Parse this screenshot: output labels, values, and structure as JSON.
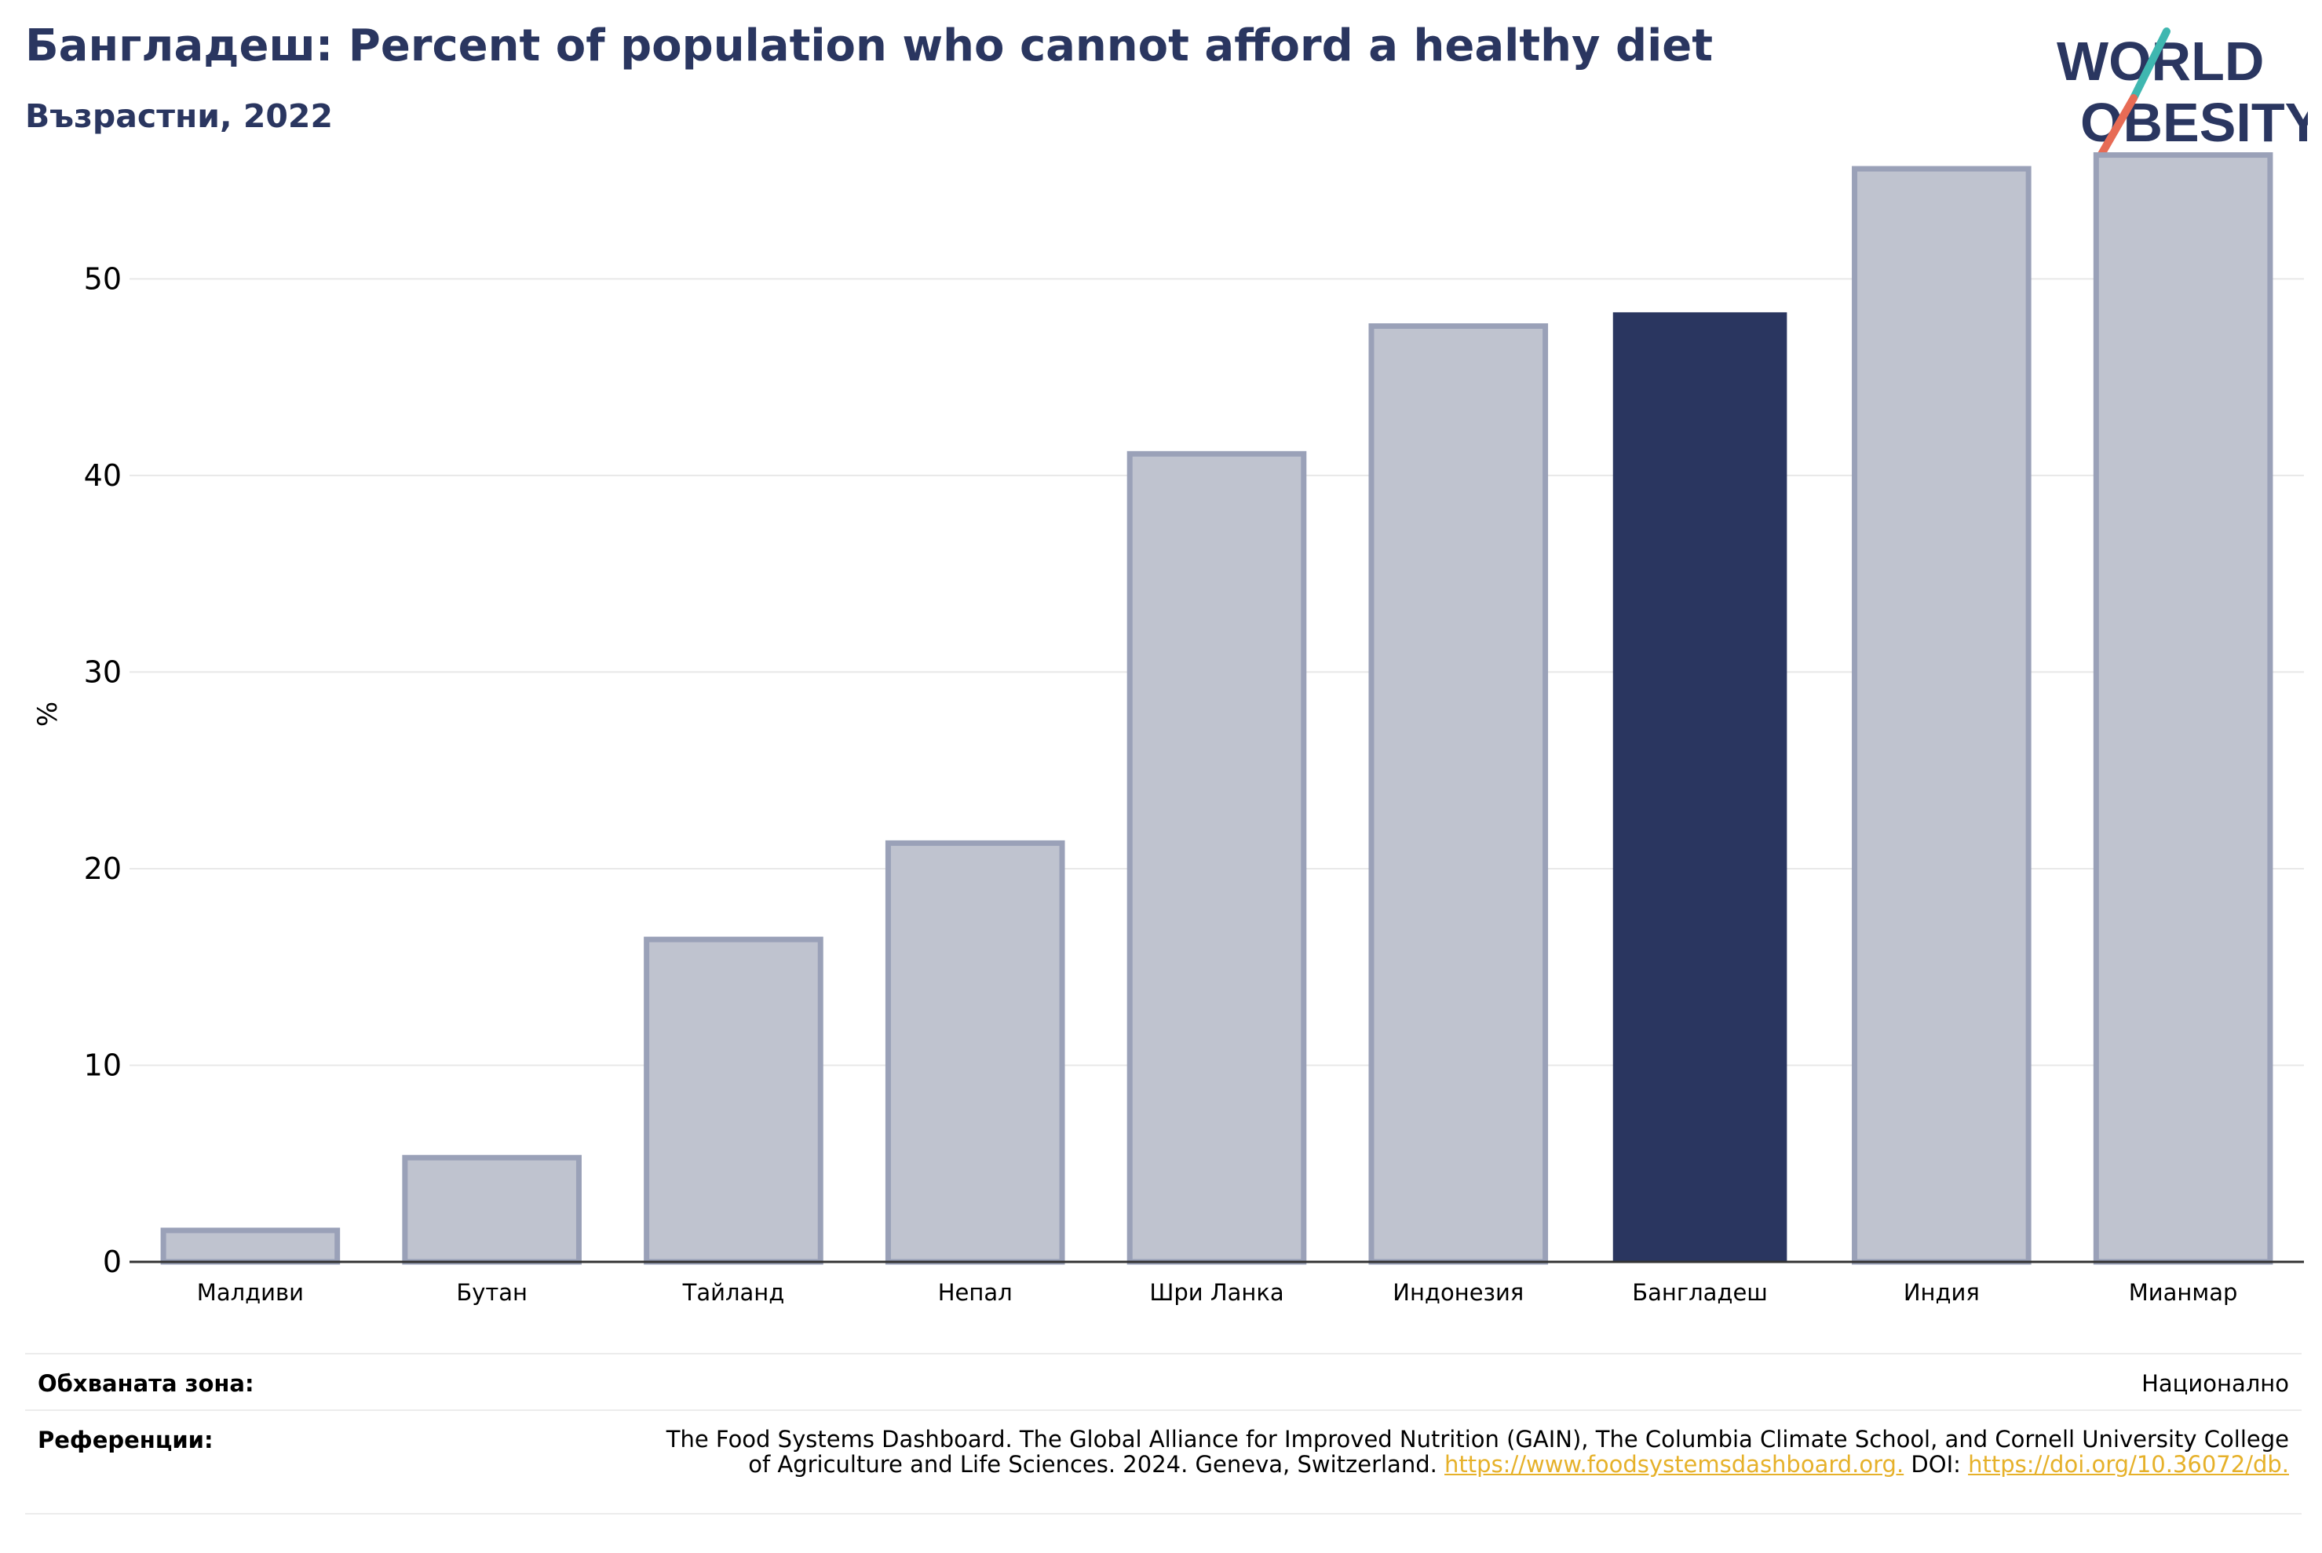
{
  "header": {
    "title": "Бангладеш: Percent of population who cannot afford a healthy diet",
    "subtitle": "Възрастни, 2022"
  },
  "logo": {
    "line1": "WORLD",
    "line2": "OBESITY"
  },
  "chart_data": {
    "type": "bar",
    "ylabel": "%",
    "ylim": [
      0,
      57
    ],
    "yticks": [
      "0",
      "10",
      "20",
      "30",
      "40",
      "50"
    ],
    "categories": [
      "Малдиви",
      "Бутан",
      "Тайланд",
      "Непал",
      "Шри Ланка",
      "Индонезия",
      "Бангладеш",
      "Индия",
      "Мианмар"
    ],
    "values": [
      1.6,
      5.3,
      16.4,
      21.3,
      41.1,
      47.6,
      48.3,
      55.6,
      56.3
    ],
    "highlight": "Бангладеш",
    "colors": {
      "bar": "#bfc3cf",
      "bar_edge": "#9aa1b8",
      "highlight": "#2a3660",
      "grid": "#e8e8e8",
      "axis": "#333333"
    }
  },
  "footer": {
    "coverage_label": "Обхваната зона:",
    "coverage_value": "Национално",
    "references_label": "Референции:",
    "references_text": "The Food Systems Dashboard. The Global Alliance for Improved Nutrition (GAIN), The Columbia Climate School, and Cornell University College of Agriculture and Life Sciences. 2024. Geneva, Switzerland.",
    "references_link1": "https://www.foodsystemsdashboard.org.",
    "references_doi_label": "DOI:",
    "references_link2": "https://doi.org/10.36072/db."
  }
}
